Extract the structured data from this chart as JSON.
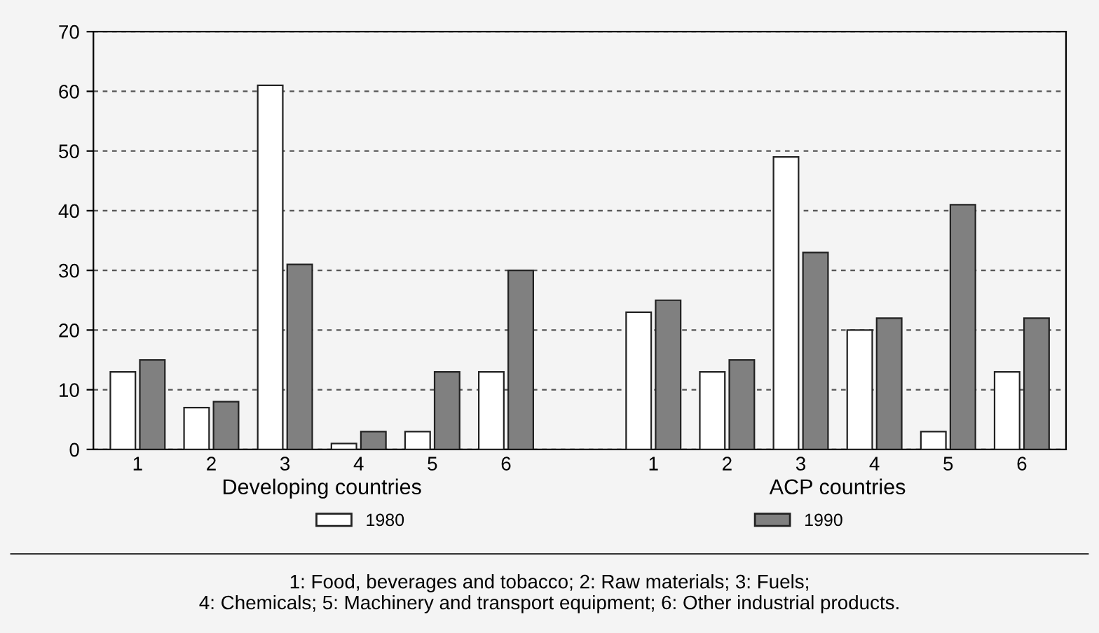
{
  "chart_data": {
    "type": "bar",
    "categories": [
      "1",
      "2",
      "3",
      "4",
      "5",
      "6",
      null,
      "1",
      "2",
      "3",
      "4",
      "5",
      "6"
    ],
    "series": [
      {
        "name": "1980",
        "color": "#ffffff",
        "values": [
          13,
          7,
          61,
          1,
          3,
          13,
          null,
          23,
          13,
          49,
          20,
          3,
          13
        ]
      },
      {
        "name": "1990",
        "color": "#808080",
        "values": [
          15,
          8,
          31,
          3,
          13,
          30,
          null,
          25,
          15,
          33,
          22,
          41,
          22
        ]
      }
    ],
    "ylim": [
      0,
      70
    ],
    "yticks": [
      0,
      10,
      20,
      30,
      40,
      50,
      60,
      70
    ],
    "grid": "y",
    "legend": "bottom",
    "annotations": [
      "Developing countries",
      "ACP countries",
      "1: Food, beverages and tobacco; 2: Raw materials; 3: Fuels;\n4: Chemicals; 5: Machinery and transport equipment; 6: Other industrial products."
    ]
  }
}
